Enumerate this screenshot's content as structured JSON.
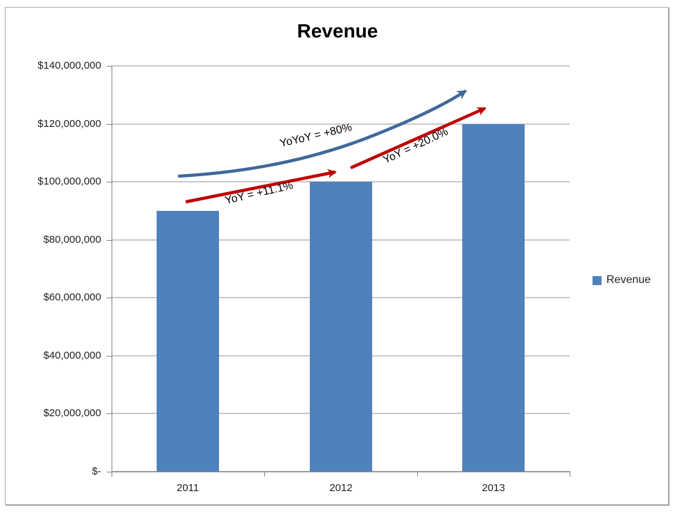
{
  "chart_data": {
    "type": "bar",
    "title": "Revenue",
    "categories": [
      "2011",
      "2012",
      "2013"
    ],
    "series": [
      {
        "name": "Revenue",
        "values": [
          90000000,
          100000000,
          120000000
        ]
      }
    ],
    "xlabel": "",
    "ylabel": "",
    "ylim": [
      0,
      140000000
    ],
    "grid": true,
    "y_ticks": [
      {
        "value": 0,
        "label": "$-"
      },
      {
        "value": 20000000,
        "label": "$20,000,000"
      },
      {
        "value": 40000000,
        "label": "$40,000,000"
      },
      {
        "value": 60000000,
        "label": "$60,000,000"
      },
      {
        "value": 80000000,
        "label": "$80,000,000"
      },
      {
        "value": 100000000,
        "label": "$100,000,000"
      },
      {
        "value": 120000000,
        "label": "$120,000,000"
      },
      {
        "value": 140000000,
        "label": "$140,000,000"
      }
    ],
    "legend_position": "right",
    "legend_label": "Revenue",
    "bar_color": "#4F81BD",
    "annotations": [
      {
        "text": "YoY = +11.1%",
        "from": "2011",
        "to": "2012",
        "shape": "straight-arrow",
        "color": "#C00000"
      },
      {
        "text": "YoY = +20.0%",
        "from": "2012",
        "to": "2013",
        "shape": "straight-arrow",
        "color": "#C00000"
      },
      {
        "text": "YoYoY = +80%",
        "from": "2011",
        "to": "2013",
        "shape": "curved-arrow",
        "color": "#40689B"
      }
    ]
  }
}
